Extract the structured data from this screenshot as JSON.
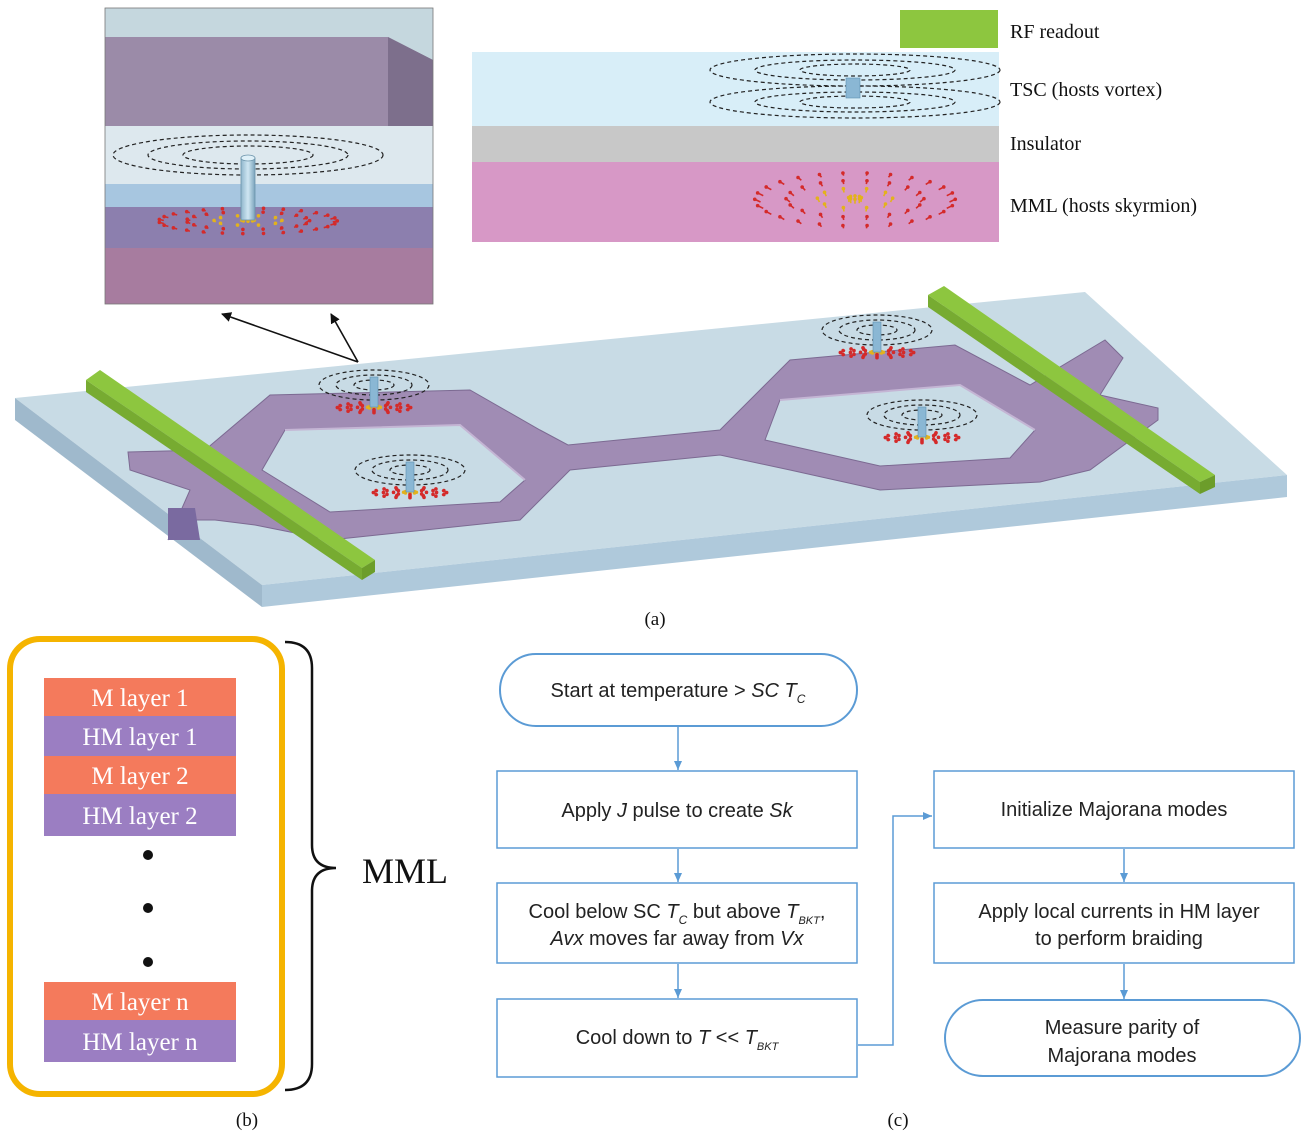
{
  "panel_a": {
    "caption": "(a)",
    "legend": {
      "rf": "RF readout",
      "tsc": "TSC (hosts vortex)",
      "insulator": "Insulator",
      "mml": "MML (hosts skyrmion)"
    },
    "colors": {
      "rf_bar": "#8dc63f",
      "tsc_layer": "#d8eef8",
      "insulator_layer": "#c8c8c8",
      "mml_layer": "#d798c6",
      "substrate": "#b9cfdc",
      "track": "#a08cb4",
      "spin_arrow": "#d42a2a"
    }
  },
  "panel_b": {
    "caption": "(b)",
    "layers_top": [
      {
        "label": "M layer 1",
        "kind": "M"
      },
      {
        "label": "HM layer 1",
        "kind": "HM"
      },
      {
        "label": "M layer 2",
        "kind": "M"
      },
      {
        "label": "HM layer 2",
        "kind": "HM"
      }
    ],
    "layers_bottom": [
      {
        "label": "M layer n",
        "kind": "M"
      },
      {
        "label": "HM layer n",
        "kind": "HM"
      }
    ],
    "brace_label": "MML",
    "colors": {
      "M": "#f47a5c",
      "HM": "#9b7ec2",
      "frame": "#f5b400"
    }
  },
  "panel_c": {
    "caption": "(c)",
    "colors": {
      "box": "#5b9bd5",
      "text": "#222222"
    }
  }
}
